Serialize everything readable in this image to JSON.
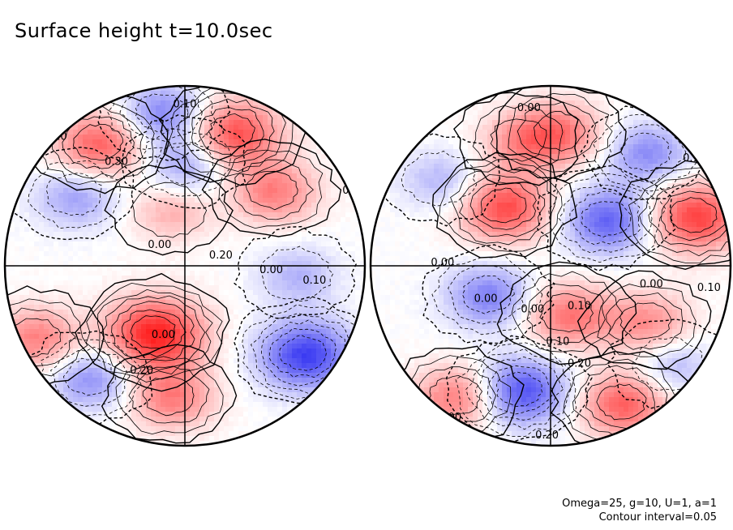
{
  "title": "Surface height t=10.0sec",
  "parameters": "Omega=25, g=10, U=1, a=1",
  "contour_interval_label": "Contour interval=0.05",
  "colors": {
    "positive": "#ff2020",
    "negative": "#2020f0",
    "zero": "#ffffff"
  },
  "chart_data": {
    "type": "heatmap",
    "title": "Surface height t=10.0sec",
    "contour_interval": 0.05,
    "grid": true,
    "hemispheres": [
      {
        "name": "left",
        "contour_labels": [
          "0.10",
          "0.00",
          "0.00",
          "0.00",
          "0.10",
          "0.20",
          "0.00",
          "0.30",
          "0.20",
          "0.10",
          "0.10"
        ],
        "features": [
          {
            "sign": "positive",
            "lon": -0.2,
            "lat": -0.42,
            "amp": 0.35
          },
          {
            "sign": "positive",
            "lon": 0.55,
            "lat": 0.48,
            "amp": 0.2
          },
          {
            "sign": "positive",
            "lon": -0.55,
            "lat": 0.78,
            "amp": 0.25
          },
          {
            "sign": "positive",
            "lon": 0.3,
            "lat": 0.85,
            "amp": 0.28
          },
          {
            "sign": "positive",
            "lon": -0.1,
            "lat": -0.82,
            "amp": 0.2
          },
          {
            "sign": "positive",
            "lon": -0.95,
            "lat": -0.45,
            "amp": 0.2
          },
          {
            "sign": "positive",
            "lon": -0.1,
            "lat": 0.35,
            "amp": 0.12
          },
          {
            "sign": "negative",
            "lon": 0.75,
            "lat": -0.55,
            "amp": -0.3
          },
          {
            "sign": "negative",
            "lon": -0.6,
            "lat": -0.7,
            "amp": -0.18
          },
          {
            "sign": "negative",
            "lon": -0.7,
            "lat": 0.45,
            "amp": -0.15
          },
          {
            "sign": "negative",
            "lon": 0.0,
            "lat": 0.65,
            "amp": -0.15
          },
          {
            "sign": "negative",
            "lon": 0.7,
            "lat": -0.05,
            "amp": -0.12
          },
          {
            "sign": "negative",
            "lon": -0.15,
            "lat": 0.97,
            "amp": -0.2
          }
        ]
      },
      {
        "name": "right",
        "contour_labels": [
          "0.00",
          "0.20",
          "0.00",
          "0.00",
          "0.10",
          "0.00",
          "0.10",
          "0.20",
          "0.10",
          "0.00",
          "0.10",
          "0.00"
        ],
        "features": [
          {
            "sign": "positive",
            "lon": -0.3,
            "lat": 0.38,
            "amp": 0.28
          },
          {
            "sign": "positive",
            "lon": 0.9,
            "lat": 0.32,
            "amp": 0.3
          },
          {
            "sign": "positive",
            "lon": 0.1,
            "lat": -0.3,
            "amp": 0.22
          },
          {
            "sign": "positive",
            "lon": 0.6,
            "lat": -0.35,
            "amp": 0.18
          },
          {
            "sign": "positive",
            "lon": -0.2,
            "lat": 0.8,
            "amp": 0.15
          },
          {
            "sign": "positive",
            "lon": 0.45,
            "lat": -0.86,
            "amp": 0.25
          },
          {
            "sign": "positive",
            "lon": -0.6,
            "lat": -0.82,
            "amp": 0.22
          },
          {
            "sign": "positive",
            "lon": 0.05,
            "lat": 0.85,
            "amp": 0.2
          },
          {
            "sign": "negative",
            "lon": 0.35,
            "lat": 0.3,
            "amp": -0.25
          },
          {
            "sign": "negative",
            "lon": -0.4,
            "lat": -0.18,
            "amp": -0.2
          },
          {
            "sign": "negative",
            "lon": -0.2,
            "lat": -0.78,
            "amp": -0.28
          },
          {
            "sign": "negative",
            "lon": 0.6,
            "lat": 0.72,
            "amp": -0.18
          },
          {
            "sign": "negative",
            "lon": -0.7,
            "lat": 0.55,
            "amp": -0.12
          },
          {
            "sign": "negative",
            "lon": 0.75,
            "lat": -0.62,
            "amp": -0.12
          }
        ]
      }
    ]
  }
}
